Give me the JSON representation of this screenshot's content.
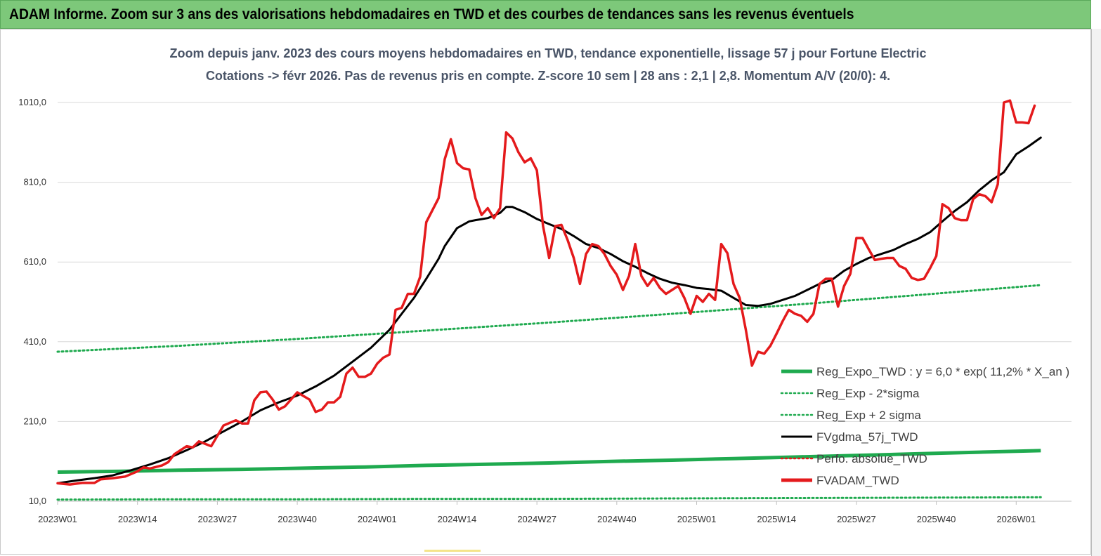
{
  "banner": {
    "title": "ADAM Informe. Zoom sur 3 ans des valorisations hebdomadaires en TWD et des courbes de tendances sans les revenus éventuels"
  },
  "subtitle_line1": "Zoom depuis janv. 2023 des cours moyens hebdomadaires en TWD, tendance exponentielle, lissage 57 j pour Fortune Electric",
  "subtitle_line2": "Cotations -> févr 2026. Pas de revenus pris en compte. Z-score 10 sem | 28 ans : 2,1 | 2,8. Momentum A/V (20/0): 4.",
  "colors": {
    "banner_bg": "#7dc87a",
    "reg_expo": "#1faa4f",
    "sigma": "#1faa4f",
    "fvgdma": "#000000",
    "perfo": "#e41a1c",
    "fvadam": "#e41a1c",
    "grid": "#d9d9d9"
  },
  "chart_data": {
    "type": "line",
    "title": "Zoom depuis janv. 2023 des cours moyens hebdomadaires en TWD, tendance exponentielle, lissage 57 j pour Fortune Electric",
    "ylim": [
      10,
      1050
    ],
    "yticks": [
      10,
      210,
      410,
      610,
      810,
      1010
    ],
    "ytick_labels": [
      "10,0",
      "210,0",
      "410,0",
      "610,0",
      "810,0",
      "1010,0"
    ],
    "x_weeks": 165,
    "xtick_positions": [
      0,
      13,
      26,
      39,
      52,
      65,
      78,
      91,
      104,
      117,
      130,
      143,
      156
    ],
    "xtick_labels": [
      "2023W01",
      "2023W14",
      "2023W27",
      "2023W40",
      "2024W01",
      "2024W14",
      "2024W27",
      "2024W40",
      "2025W01",
      "2025W14",
      "2025W27",
      "2025W40",
      "2026W01"
    ],
    "legend": [
      {
        "name": "Reg_Expo_TWD : y = 6,0 * exp( 11,2% *  X_an )",
        "style": "solid-thick",
        "color": "#1faa4f"
      },
      {
        "name": "Reg_Exp - 2*sigma",
        "style": "dotted",
        "color": "#1faa4f"
      },
      {
        "name": "Reg_Exp + 2 sigma",
        "style": "dotted",
        "color": "#1faa4f"
      },
      {
        "name": "FVgdma_57j_TWD",
        "style": "solid",
        "color": "#000000"
      },
      {
        "name": "Perfo. absolue_TWD",
        "style": "dotted",
        "color": "#e41a1c"
      },
      {
        "name": "FVADAM_TWD",
        "style": "solid-thick",
        "color": "#e41a1c"
      }
    ],
    "series": [
      {
        "name": "FVADAM_TWD",
        "points": [
          [
            0,
            55
          ],
          [
            2,
            52
          ],
          [
            4,
            56
          ],
          [
            6,
            56
          ],
          [
            7,
            65
          ],
          [
            9,
            68
          ],
          [
            11,
            72
          ],
          [
            13,
            85
          ],
          [
            14,
            95
          ],
          [
            15,
            92
          ],
          [
            17,
            100
          ],
          [
            18,
            108
          ],
          [
            19,
            128
          ],
          [
            21,
            148
          ],
          [
            22,
            145
          ],
          [
            23,
            160
          ],
          [
            25,
            148
          ],
          [
            27,
            200
          ],
          [
            29,
            213
          ],
          [
            30,
            205
          ],
          [
            31,
            205
          ],
          [
            32,
            263
          ],
          [
            33,
            283
          ],
          [
            34,
            285
          ],
          [
            35,
            265
          ],
          [
            36,
            240
          ],
          [
            37,
            248
          ],
          [
            39,
            283
          ],
          [
            41,
            265
          ],
          [
            42,
            234
          ],
          [
            43,
            240
          ],
          [
            44,
            258
          ],
          [
            45,
            258
          ],
          [
            46,
            272
          ],
          [
            47,
            330
          ],
          [
            48,
            345
          ],
          [
            49,
            322
          ],
          [
            50,
            322
          ],
          [
            51,
            330
          ],
          [
            52,
            355
          ],
          [
            53,
            370
          ],
          [
            54,
            378
          ],
          [
            55,
            490
          ],
          [
            56,
            495
          ],
          [
            57,
            530
          ],
          [
            58,
            530
          ],
          [
            59,
            573
          ],
          [
            60,
            710
          ],
          [
            62,
            770
          ],
          [
            63,
            868
          ],
          [
            64,
            918
          ],
          [
            65,
            858
          ],
          [
            66,
            845
          ],
          [
            67,
            842
          ],
          [
            68,
            770
          ],
          [
            69,
            728
          ],
          [
            70,
            745
          ],
          [
            71,
            720
          ],
          [
            72,
            745
          ],
          [
            73,
            935
          ],
          [
            74,
            920
          ],
          [
            75,
            885
          ],
          [
            76,
            860
          ],
          [
            77,
            870
          ],
          [
            78,
            840
          ],
          [
            79,
            700
          ],
          [
            80,
            620
          ],
          [
            81,
            700
          ],
          [
            82,
            703
          ],
          [
            83,
            665
          ],
          [
            84,
            620
          ],
          [
            85,
            555
          ],
          [
            86,
            630
          ],
          [
            87,
            655
          ],
          [
            88,
            650
          ],
          [
            89,
            630
          ],
          [
            90,
            600
          ],
          [
            91,
            578
          ],
          [
            92,
            540
          ],
          [
            93,
            575
          ],
          [
            94,
            655
          ],
          [
            95,
            575
          ],
          [
            96,
            550
          ],
          [
            97,
            570
          ],
          [
            98,
            545
          ],
          [
            99,
            530
          ],
          [
            100,
            540
          ],
          [
            101,
            550
          ],
          [
            102,
            520
          ],
          [
            103,
            480
          ],
          [
            104,
            525
          ],
          [
            105,
            510
          ],
          [
            106,
            530
          ],
          [
            107,
            515
          ],
          [
            108,
            655
          ],
          [
            109,
            632
          ],
          [
            110,
            555
          ],
          [
            111,
            520
          ],
          [
            112,
            440
          ],
          [
            113,
            350
          ],
          [
            114,
            385
          ],
          [
            115,
            380
          ],
          [
            116,
            400
          ],
          [
            117,
            430
          ],
          [
            118,
            462
          ],
          [
            119,
            490
          ],
          [
            120,
            480
          ],
          [
            121,
            475
          ],
          [
            122,
            460
          ],
          [
            123,
            480
          ],
          [
            124,
            555
          ],
          [
            125,
            568
          ],
          [
            126,
            568
          ],
          [
            127,
            498
          ],
          [
            128,
            550
          ],
          [
            129,
            580
          ],
          [
            130,
            670
          ],
          [
            131,
            670
          ],
          [
            132,
            642
          ],
          [
            133,
            615
          ],
          [
            134,
            618
          ],
          [
            135,
            620
          ],
          [
            136,
            620
          ],
          [
            137,
            600
          ],
          [
            138,
            593
          ],
          [
            139,
            570
          ],
          [
            140,
            565
          ],
          [
            141,
            568
          ],
          [
            142,
            595
          ],
          [
            143,
            625
          ],
          [
            144,
            755
          ],
          [
            145,
            745
          ],
          [
            146,
            720
          ],
          [
            147,
            715
          ],
          [
            148,
            715
          ],
          [
            149,
            768
          ],
          [
            150,
            780
          ],
          [
            151,
            775
          ],
          [
            152,
            760
          ],
          [
            153,
            805
          ],
          [
            154,
            1010
          ],
          [
            155,
            1015
          ],
          [
            156,
            960
          ],
          [
            157,
            960
          ],
          [
            158,
            958
          ],
          [
            159,
            1002
          ]
        ]
      },
      {
        "name": "FVgdma_57j_TWD",
        "points": [
          [
            0,
            55
          ],
          [
            3,
            62
          ],
          [
            6,
            68
          ],
          [
            9,
            75
          ],
          [
            12,
            88
          ],
          [
            15,
            102
          ],
          [
            18,
            118
          ],
          [
            21,
            138
          ],
          [
            24,
            160
          ],
          [
            27,
            185
          ],
          [
            30,
            210
          ],
          [
            33,
            238
          ],
          [
            36,
            258
          ],
          [
            39,
            275
          ],
          [
            42,
            298
          ],
          [
            45,
            325
          ],
          [
            48,
            360
          ],
          [
            51,
            395
          ],
          [
            54,
            440
          ],
          [
            56,
            480
          ],
          [
            58,
            520
          ],
          [
            60,
            568
          ],
          [
            62,
            618
          ],
          [
            63,
            650
          ],
          [
            65,
            695
          ],
          [
            67,
            712
          ],
          [
            68,
            715
          ],
          [
            70,
            720
          ],
          [
            72,
            733
          ],
          [
            73,
            748
          ],
          [
            74,
            748
          ],
          [
            76,
            735
          ],
          [
            78,
            718
          ],
          [
            80,
            705
          ],
          [
            82,
            693
          ],
          [
            84,
            675
          ],
          [
            86,
            655
          ],
          [
            88,
            645
          ],
          [
            90,
            630
          ],
          [
            92,
            612
          ],
          [
            94,
            598
          ],
          [
            96,
            582
          ],
          [
            98,
            568
          ],
          [
            100,
            558
          ],
          [
            102,
            552
          ],
          [
            104,
            545
          ],
          [
            106,
            542
          ],
          [
            108,
            538
          ],
          [
            110,
            520
          ],
          [
            112,
            502
          ],
          [
            114,
            500
          ],
          [
            116,
            505
          ],
          [
            118,
            515
          ],
          [
            120,
            525
          ],
          [
            122,
            540
          ],
          [
            124,
            555
          ],
          [
            126,
            565
          ],
          [
            128,
            588
          ],
          [
            130,
            605
          ],
          [
            132,
            620
          ],
          [
            134,
            630
          ],
          [
            136,
            640
          ],
          [
            138,
            655
          ],
          [
            140,
            668
          ],
          [
            142,
            685
          ],
          [
            144,
            712
          ],
          [
            146,
            738
          ],
          [
            148,
            760
          ],
          [
            150,
            790
          ],
          [
            152,
            815
          ],
          [
            154,
            835
          ],
          [
            156,
            880
          ],
          [
            158,
            900
          ],
          [
            160,
            922
          ]
        ]
      },
      {
        "name": "Reg_Expo_TWD",
        "points": [
          [
            0,
            83
          ],
          [
            10,
            85
          ],
          [
            20,
            88
          ],
          [
            30,
            90
          ],
          [
            40,
            93
          ],
          [
            50,
            96
          ],
          [
            60,
            100
          ],
          [
            70,
            103
          ],
          [
            80,
            106
          ],
          [
            90,
            110
          ],
          [
            100,
            113
          ],
          [
            110,
            117
          ],
          [
            120,
            121
          ],
          [
            130,
            125
          ],
          [
            140,
            129
          ],
          [
            150,
            133
          ],
          [
            160,
            137
          ]
        ]
      },
      {
        "name": "Reg_Exp - 2*sigma",
        "points": [
          [
            0,
            14
          ],
          [
            20,
            15
          ],
          [
            40,
            15
          ],
          [
            60,
            16
          ],
          [
            80,
            16
          ],
          [
            100,
            17
          ],
          [
            120,
            18
          ],
          [
            140,
            19
          ],
          [
            160,
            20
          ]
        ]
      },
      {
        "name": "Reg_Exp + 2 sigma",
        "points": [
          [
            0,
            385
          ],
          [
            20,
            400
          ],
          [
            40,
            418
          ],
          [
            60,
            438
          ],
          [
            80,
            458
          ],
          [
            100,
            480
          ],
          [
            120,
            503
          ],
          [
            140,
            527
          ],
          [
            160,
            552
          ]
        ]
      }
    ]
  }
}
